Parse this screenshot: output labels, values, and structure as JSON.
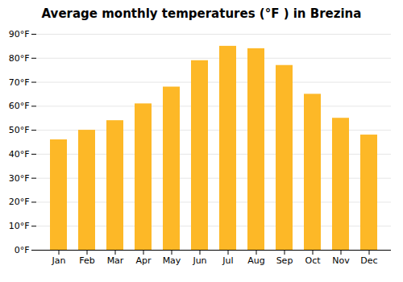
{
  "chart_data": {
    "type": "bar",
    "title": "Average monthly temperatures (°F ) in Brezina",
    "categories": [
      "Jan",
      "Feb",
      "Mar",
      "Apr",
      "May",
      "Jun",
      "Jul",
      "Aug",
      "Sep",
      "Oct",
      "Nov",
      "Dec"
    ],
    "values": [
      46,
      50,
      54,
      61,
      68,
      79,
      85,
      84,
      77,
      65,
      55,
      48
    ],
    "color": "#FDB827",
    "ylim": [
      0,
      90
    ],
    "yticks": [
      {
        "value": 0,
        "label": "0°F"
      },
      {
        "value": 10,
        "label": "10°F"
      },
      {
        "value": 20,
        "label": "20°F"
      },
      {
        "value": 30,
        "label": "30°F"
      },
      {
        "value": 40,
        "label": "40°F"
      },
      {
        "value": 50,
        "label": "50°F"
      },
      {
        "value": 60,
        "label": "60°F"
      },
      {
        "value": 70,
        "label": "70°F"
      },
      {
        "value": 80,
        "label": "80°F"
      },
      {
        "value": 90,
        "label": "90°F"
      }
    ],
    "grid": true
  }
}
